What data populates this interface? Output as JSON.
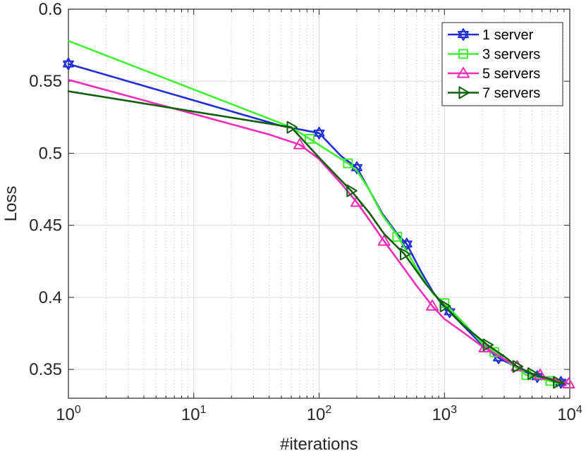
{
  "chart_data": {
    "type": "line",
    "title": "",
    "xlabel": "#iterations",
    "ylabel": "Loss",
    "xscale": "log",
    "xlim": [
      1,
      10000
    ],
    "ylim": [
      0.33,
      0.6
    ],
    "x_ticks": [
      {
        "value": 1,
        "base": "10",
        "exp": "0"
      },
      {
        "value": 10,
        "base": "10",
        "exp": "1"
      },
      {
        "value": 100,
        "base": "10",
        "exp": "2"
      },
      {
        "value": 1000,
        "base": "10",
        "exp": "3"
      },
      {
        "value": 10000,
        "base": "10",
        "exp": "4"
      }
    ],
    "y_ticks": [
      {
        "value": 0.35,
        "label": "0.35"
      },
      {
        "value": 0.4,
        "label": "0.4"
      },
      {
        "value": 0.45,
        "label": "0.45"
      },
      {
        "value": 0.5,
        "label": "0.5"
      },
      {
        "value": 0.55,
        "label": "0.55"
      },
      {
        "value": 0.6,
        "label": "0.6"
      }
    ],
    "grid": true,
    "legend_position": "top-right",
    "series": [
      {
        "name": "1 server",
        "color": "#1f2ed6",
        "marker": "hexagram",
        "line": [
          [
            1,
            0.562
          ],
          [
            50,
            0.519
          ],
          [
            100,
            0.514
          ],
          [
            150,
            0.498
          ],
          [
            200,
            0.49
          ],
          [
            250,
            0.475
          ],
          [
            320,
            0.458
          ],
          [
            420,
            0.444
          ],
          [
            500,
            0.437
          ],
          [
            650,
            0.418
          ],
          [
            820,
            0.403
          ],
          [
            1000,
            0.393
          ],
          [
            1100,
            0.39
          ],
          [
            1500,
            0.378
          ],
          [
            2000,
            0.367
          ],
          [
            2700,
            0.358
          ],
          [
            3500,
            0.353
          ],
          [
            4500,
            0.348
          ],
          [
            5500,
            0.345
          ],
          [
            7000,
            0.342
          ],
          [
            8500,
            0.341
          ]
        ],
        "markers": [
          [
            1,
            0.562
          ],
          [
            100,
            0.514
          ],
          [
            200,
            0.49
          ],
          [
            500,
            0.437
          ],
          [
            1100,
            0.39
          ],
          [
            2700,
            0.358
          ],
          [
            5500,
            0.345
          ],
          [
            8500,
            0.341
          ]
        ]
      },
      {
        "name": "3 servers",
        "color": "#3ff22f",
        "marker": "square",
        "line": [
          [
            1,
            0.578
          ],
          [
            60,
            0.518
          ],
          [
            84,
            0.51
          ],
          [
            170,
            0.493
          ],
          [
            200,
            0.488
          ],
          [
            250,
            0.475
          ],
          [
            320,
            0.457
          ],
          [
            420,
            0.443
          ],
          [
            500,
            0.432
          ],
          [
            650,
            0.415
          ],
          [
            820,
            0.402
          ],
          [
            1000,
            0.396
          ],
          [
            1500,
            0.38
          ],
          [
            2000,
            0.368
          ],
          [
            2500,
            0.362
          ],
          [
            3500,
            0.353
          ],
          [
            4500,
            0.346
          ],
          [
            5500,
            0.344
          ],
          [
            7000,
            0.342
          ],
          [
            8000,
            0.34
          ]
        ],
        "markers": [
          [
            84,
            0.51
          ],
          [
            170,
            0.493
          ],
          [
            420,
            0.442
          ],
          [
            1000,
            0.396
          ],
          [
            2500,
            0.362
          ],
          [
            4500,
            0.346
          ],
          [
            7000,
            0.342
          ]
        ]
      },
      {
        "name": "5 servers",
        "color": "#f02cb8",
        "marker": "triangle-up",
        "line": [
          [
            1,
            0.551
          ],
          [
            40,
            0.513
          ],
          [
            70,
            0.506
          ],
          [
            100,
            0.496
          ],
          [
            150,
            0.479
          ],
          [
            200,
            0.466
          ],
          [
            260,
            0.452
          ],
          [
            330,
            0.439
          ],
          [
            450,
            0.423
          ],
          [
            600,
            0.408
          ],
          [
            800,
            0.394
          ],
          [
            1000,
            0.385
          ],
          [
            1500,
            0.374
          ],
          [
            2000,
            0.366
          ],
          [
            3000,
            0.357
          ],
          [
            3800,
            0.352
          ],
          [
            5000,
            0.347
          ],
          [
            6000,
            0.345
          ],
          [
            7500,
            0.343
          ],
          [
            9800,
            0.34
          ]
        ],
        "markers": [
          [
            70,
            0.506
          ],
          [
            200,
            0.466
          ],
          [
            330,
            0.439
          ],
          [
            800,
            0.394
          ],
          [
            2100,
            0.365
          ],
          [
            3800,
            0.352
          ],
          [
            5800,
            0.346
          ],
          [
            9800,
            0.34
          ]
        ]
      },
      {
        "name": "7 servers",
        "color": "#0f5f0a",
        "marker": "triangle-right",
        "line": [
          [
            1,
            0.543
          ],
          [
            60,
            0.518
          ],
          [
            100,
            0.497
          ],
          [
            180,
            0.474
          ],
          [
            250,
            0.459
          ],
          [
            330,
            0.444
          ],
          [
            480,
            0.43
          ],
          [
            700,
            0.41
          ],
          [
            1000,
            0.394
          ],
          [
            1400,
            0.381
          ],
          [
            2200,
            0.367
          ],
          [
            3000,
            0.359
          ],
          [
            3800,
            0.352
          ],
          [
            5000,
            0.347
          ],
          [
            6500,
            0.344
          ],
          [
            8000,
            0.341
          ],
          [
            9000,
            0.34
          ]
        ],
        "markers": [
          [
            60,
            0.518
          ],
          [
            180,
            0.474
          ],
          [
            480,
            0.43
          ],
          [
            1000,
            0.394
          ],
          [
            2200,
            0.367
          ],
          [
            3800,
            0.352
          ],
          [
            5000,
            0.347
          ],
          [
            8000,
            0.341
          ]
        ]
      }
    ]
  }
}
